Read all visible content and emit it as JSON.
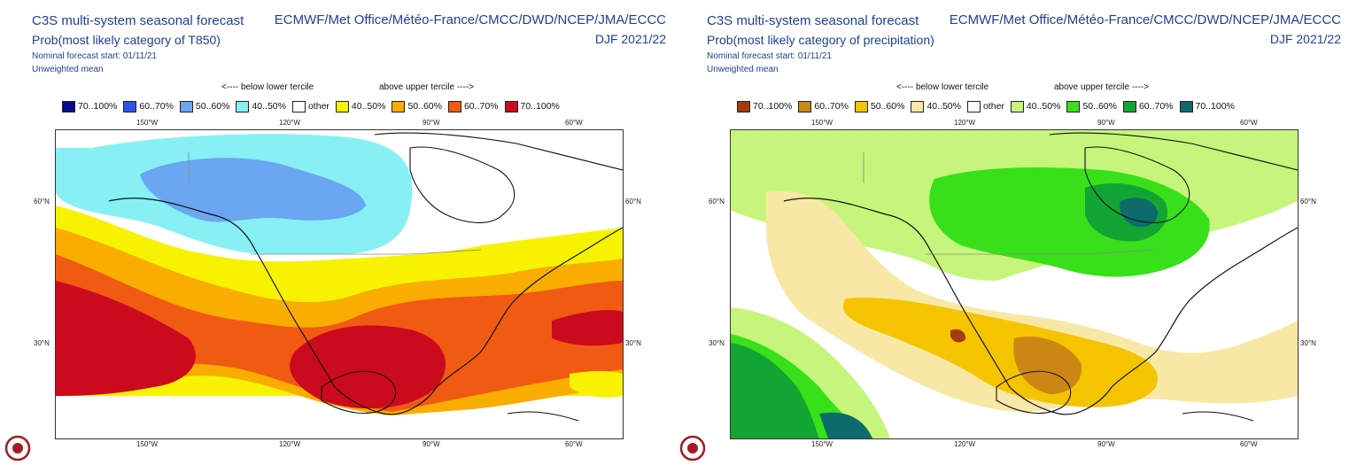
{
  "panels": [
    {
      "title": "C3S multi-system seasonal forecast",
      "subtitle": "Prob(most likely category of T850)",
      "nominal_start": "Nominal forecast start: 01/11/21",
      "mean": "Unweighted mean",
      "sources": "ECMWF/Met Office/Météo-France/CMCC/DWD/NCEP/JMA/ECCC",
      "season": "DJF 2021/22",
      "below_label": "<---- below lower tercile",
      "above_label": "above upper tercile ---->",
      "legend": [
        {
          "label": "70..100%",
          "color": "#0a0a8c"
        },
        {
          "label": "60..70%",
          "color": "#2b55e8"
        },
        {
          "label": "50..60%",
          "color": "#6aa6f2"
        },
        {
          "label": "40..50%",
          "color": "#86f0f5"
        },
        {
          "label": "other",
          "color": "#ffffff"
        },
        {
          "label": "40..50%",
          "color": "#f6f200"
        },
        {
          "label": "50..60%",
          "color": "#f8ad00"
        },
        {
          "label": "60..70%",
          "color": "#f15a12"
        },
        {
          "label": "70..100%",
          "color": "#cc0a1e"
        }
      ],
      "top_ticks": [
        "150°W",
        "120°W",
        "90°W",
        "60°W"
      ],
      "bottom_ticks": [
        "150°W",
        "120°W",
        "90°W",
        "60°W"
      ],
      "left_ticks": [
        "60°N",
        "30°N"
      ],
      "right_ticks": [
        "60°N",
        "30°N"
      ]
    },
    {
      "title": "C3S multi-system seasonal forecast",
      "subtitle": "Prob(most likely category of precipitation)",
      "nominal_start": "Nominal forecast start: 01/11/21",
      "mean": "Unweighted mean",
      "sources": "ECMWF/Met Office/Météo-France/CMCC/DWD/NCEP/JMA/ECCC",
      "season": "DJF 2021/22",
      "below_label": "<---- below lower tercile",
      "above_label": "above upper tercile ---->",
      "legend": [
        {
          "label": "70..100%",
          "color": "#a33c0a"
        },
        {
          "label": "60..70%",
          "color": "#cc8614"
        },
        {
          "label": "50..60%",
          "color": "#f5c400"
        },
        {
          "label": "40..50%",
          "color": "#f7e8a6"
        },
        {
          "label": "other",
          "color": "#ffffff"
        },
        {
          "label": "40..50%",
          "color": "#c6f57c"
        },
        {
          "label": "50..60%",
          "color": "#38e01a"
        },
        {
          "label": "60..70%",
          "color": "#12a534"
        },
        {
          "label": "70..100%",
          "color": "#0d6b6b"
        }
      ],
      "top_ticks": [
        "150°W",
        "120°W",
        "90°W",
        "60°W"
      ],
      "bottom_ticks": [
        "150°W",
        "120°W",
        "90°W",
        "60°W"
      ],
      "left_ticks": [
        "60°N",
        "30°N"
      ],
      "right_ticks": [
        "60°N",
        "30°N"
      ]
    }
  ]
}
